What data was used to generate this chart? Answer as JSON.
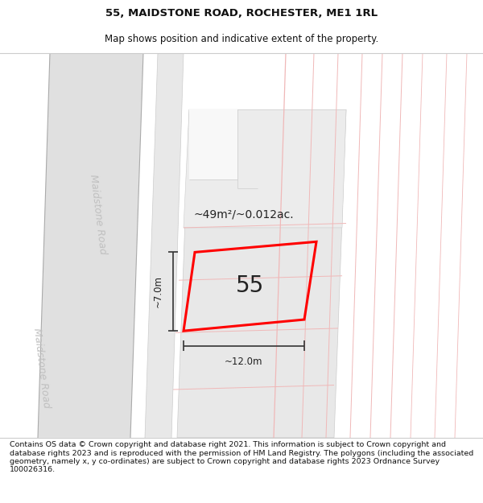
{
  "title": "55, MAIDSTONE ROAD, ROCHESTER, ME1 1RL",
  "subtitle": "Map shows position and indicative extent of the property.",
  "footer": "Contains OS data © Crown copyright and database right 2021. This information is subject to Crown copyright and database rights 2023 and is reproduced with the permission of HM Land Registry. The polygons (including the associated geometry, namely x, y co-ordinates) are subject to Crown copyright and database rights 2023 Ordnance Survey 100026316.",
  "bg_color": "#ffffff",
  "road_label_upper": "Maidstone Road",
  "road_label_lower": "Maidstone Road",
  "area_text": "~49m²/~0.012ac.",
  "plot_number": "55",
  "dim_width": "~12.0m",
  "dim_height": "~7.0m",
  "title_fontsize": 9.5,
  "subtitle_fontsize": 8.5,
  "footer_fontsize": 6.8,
  "plot_edge_color": "#ff0000",
  "dim_color": "#333333",
  "road_text_color": "#bbbbbb",
  "map_bg": "#f5f5f5"
}
